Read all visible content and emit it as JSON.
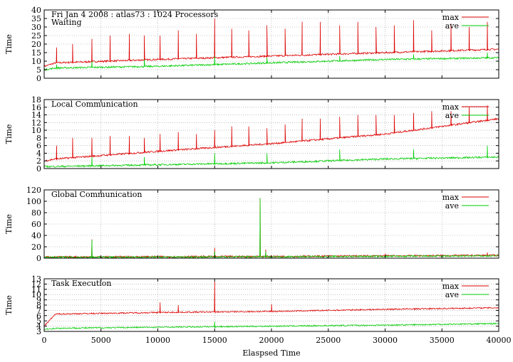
{
  "chart_data": [
    {
      "type": "line",
      "title": "Fri Jan 4 2008 : atlas73 : 1024 Processors",
      "subtitle": "Waiting",
      "xlabel": "",
      "ylabel": "Time",
      "xlim": [
        0,
        40000
      ],
      "ylim": [
        0,
        40
      ],
      "yticks": [
        0,
        5,
        10,
        15,
        20,
        25,
        30,
        35,
        40
      ],
      "grid": true,
      "legend": "top-right",
      "colors": {
        "max": "#dd0000",
        "ave": "#00cc00"
      },
      "series": [
        {
          "name": "max",
          "baseline": [
            [
              0,
              7
            ],
            [
              1000,
              9
            ],
            [
              10000,
              11
            ],
            [
              20000,
              13
            ],
            [
              30000,
              15
            ],
            [
              40000,
              17
            ]
          ],
          "spikes": [
            [
              1100,
              18
            ],
            [
              2500,
              20
            ],
            [
              4200,
              23
            ],
            [
              5800,
              25
            ],
            [
              7500,
              26
            ],
            [
              8800,
              25
            ],
            [
              10200,
              25
            ],
            [
              11800,
              28
            ],
            [
              13400,
              26
            ],
            [
              15000,
              35
            ],
            [
              16500,
              29
            ],
            [
              18000,
              28
            ],
            [
              19600,
              31
            ],
            [
              21200,
              29
            ],
            [
              22700,
              33
            ],
            [
              24300,
              33
            ],
            [
              26000,
              31
            ],
            [
              27600,
              33
            ],
            [
              29200,
              30
            ],
            [
              30800,
              31
            ],
            [
              32500,
              34
            ],
            [
              34100,
              28
            ],
            [
              35800,
              32
            ],
            [
              37400,
              30
            ],
            [
              39000,
              33
            ]
          ]
        },
        {
          "name": "ave",
          "baseline": [
            [
              0,
              5
            ],
            [
              1000,
              6
            ],
            [
              10000,
              7
            ],
            [
              20000,
              9
            ],
            [
              30000,
              11
            ],
            [
              40000,
              12
            ]
          ],
          "spikes": [
            [
              1100,
              8
            ],
            [
              4200,
              10
            ],
            [
              8800,
              11
            ],
            [
              15000,
              13
            ],
            [
              19600,
              12
            ],
            [
              26000,
              13
            ],
            [
              32500,
              14
            ],
            [
              39000,
              15
            ]
          ]
        }
      ]
    },
    {
      "type": "line",
      "title": "Local Communication",
      "xlabel": "",
      "ylabel": "Time",
      "xlim": [
        0,
        40000
      ],
      "ylim": [
        0,
        18
      ],
      "yticks": [
        0,
        2,
        4,
        6,
        8,
        10,
        12,
        14,
        16,
        18
      ],
      "grid": true,
      "legend": "top-right",
      "series": [
        {
          "name": "max",
          "baseline": [
            [
              0,
              2
            ],
            [
              1000,
              2.5
            ],
            [
              10000,
              4.5
            ],
            [
              20000,
              6.5
            ],
            [
              30000,
              9
            ],
            [
              40000,
              13
            ]
          ],
          "spikes": [
            [
              1100,
              6
            ],
            [
              2500,
              8
            ],
            [
              4200,
              8
            ],
            [
              5800,
              8.5
            ],
            [
              7500,
              8.5
            ],
            [
              8800,
              8
            ],
            [
              10200,
              9
            ],
            [
              11800,
              9.5
            ],
            [
              13400,
              9
            ],
            [
              15000,
              10
            ],
            [
              16500,
              11
            ],
            [
              18000,
              11
            ],
            [
              19600,
              10.5
            ],
            [
              21200,
              11.5
            ],
            [
              22700,
              13
            ],
            [
              24300,
              13
            ],
            [
              26000,
              13.5
            ],
            [
              27600,
              14
            ],
            [
              29200,
              14
            ],
            [
              30800,
              14
            ],
            [
              32500,
              14.5
            ],
            [
              34100,
              15
            ],
            [
              35800,
              15
            ],
            [
              37400,
              16
            ],
            [
              39000,
              16.5
            ]
          ]
        },
        {
          "name": "ave",
          "baseline": [
            [
              0,
              0.5
            ],
            [
              10000,
              1
            ],
            [
              20000,
              1.5
            ],
            [
              30000,
              2.5
            ],
            [
              40000,
              3
            ]
          ],
          "spikes": [
            [
              4200,
              3
            ],
            [
              8800,
              3
            ],
            [
              15000,
              4
            ],
            [
              19600,
              4
            ],
            [
              26000,
              5
            ],
            [
              32500,
              5
            ],
            [
              39000,
              6
            ]
          ]
        }
      ]
    },
    {
      "type": "line",
      "title": "Global Communication",
      "xlabel": "",
      "ylabel": "Time",
      "xlim": [
        0,
        40000
      ],
      "ylim": [
        0,
        120
      ],
      "yticks": [
        0,
        20,
        40,
        60,
        80,
        100,
        120
      ],
      "grid": true,
      "legend": "top-right",
      "series": [
        {
          "name": "max",
          "baseline": [
            [
              0,
              2
            ],
            [
              20000,
              3
            ],
            [
              40000,
              5
            ]
          ],
          "spikes": [
            [
              4200,
              33
            ],
            [
              15000,
              18
            ],
            [
              19000,
              105
            ],
            [
              19500,
              15
            ],
            [
              30000,
              8
            ],
            [
              39000,
              10
            ]
          ]
        },
        {
          "name": "ave",
          "baseline": [
            [
              0,
              1.5
            ],
            [
              20000,
              2.5
            ],
            [
              40000,
              4
            ]
          ],
          "spikes": [
            [
              4200,
              32
            ],
            [
              15000,
              12
            ],
            [
              19000,
              106
            ],
            [
              19500,
              12
            ]
          ]
        }
      ]
    },
    {
      "type": "line",
      "title": "Task Execution",
      "xlabel": "Elaspsed Time",
      "ylabel": "Time",
      "xlim": [
        0,
        40000
      ],
      "ylim": [
        3,
        13
      ],
      "yticks": [
        3,
        4,
        5,
        6,
        7,
        8,
        9,
        10,
        11,
        12,
        13
      ],
      "xticks": [
        0,
        5000,
        10000,
        15000,
        20000,
        25000,
        30000,
        35000,
        40000
      ],
      "grid": true,
      "legend": "top-right",
      "series": [
        {
          "name": "max",
          "baseline": [
            [
              0,
              4
            ],
            [
              1000,
              6.3
            ],
            [
              10000,
              6.6
            ],
            [
              20000,
              6.8
            ],
            [
              30000,
              7.2
            ],
            [
              40000,
              7.5
            ]
          ],
          "spikes": [
            [
              15000,
              12.5
            ],
            [
              10200,
              8.5
            ],
            [
              11800,
              8
            ],
            [
              20000,
              8.2
            ]
          ]
        },
        {
          "name": "ave",
          "baseline": [
            [
              0,
              3.4
            ],
            [
              1000,
              3.6
            ],
            [
              10000,
              3.8
            ],
            [
              20000,
              4
            ],
            [
              30000,
              4.2
            ],
            [
              40000,
              4.5
            ]
          ],
          "spikes": [
            [
              15000,
              4.8
            ]
          ]
        }
      ]
    }
  ]
}
